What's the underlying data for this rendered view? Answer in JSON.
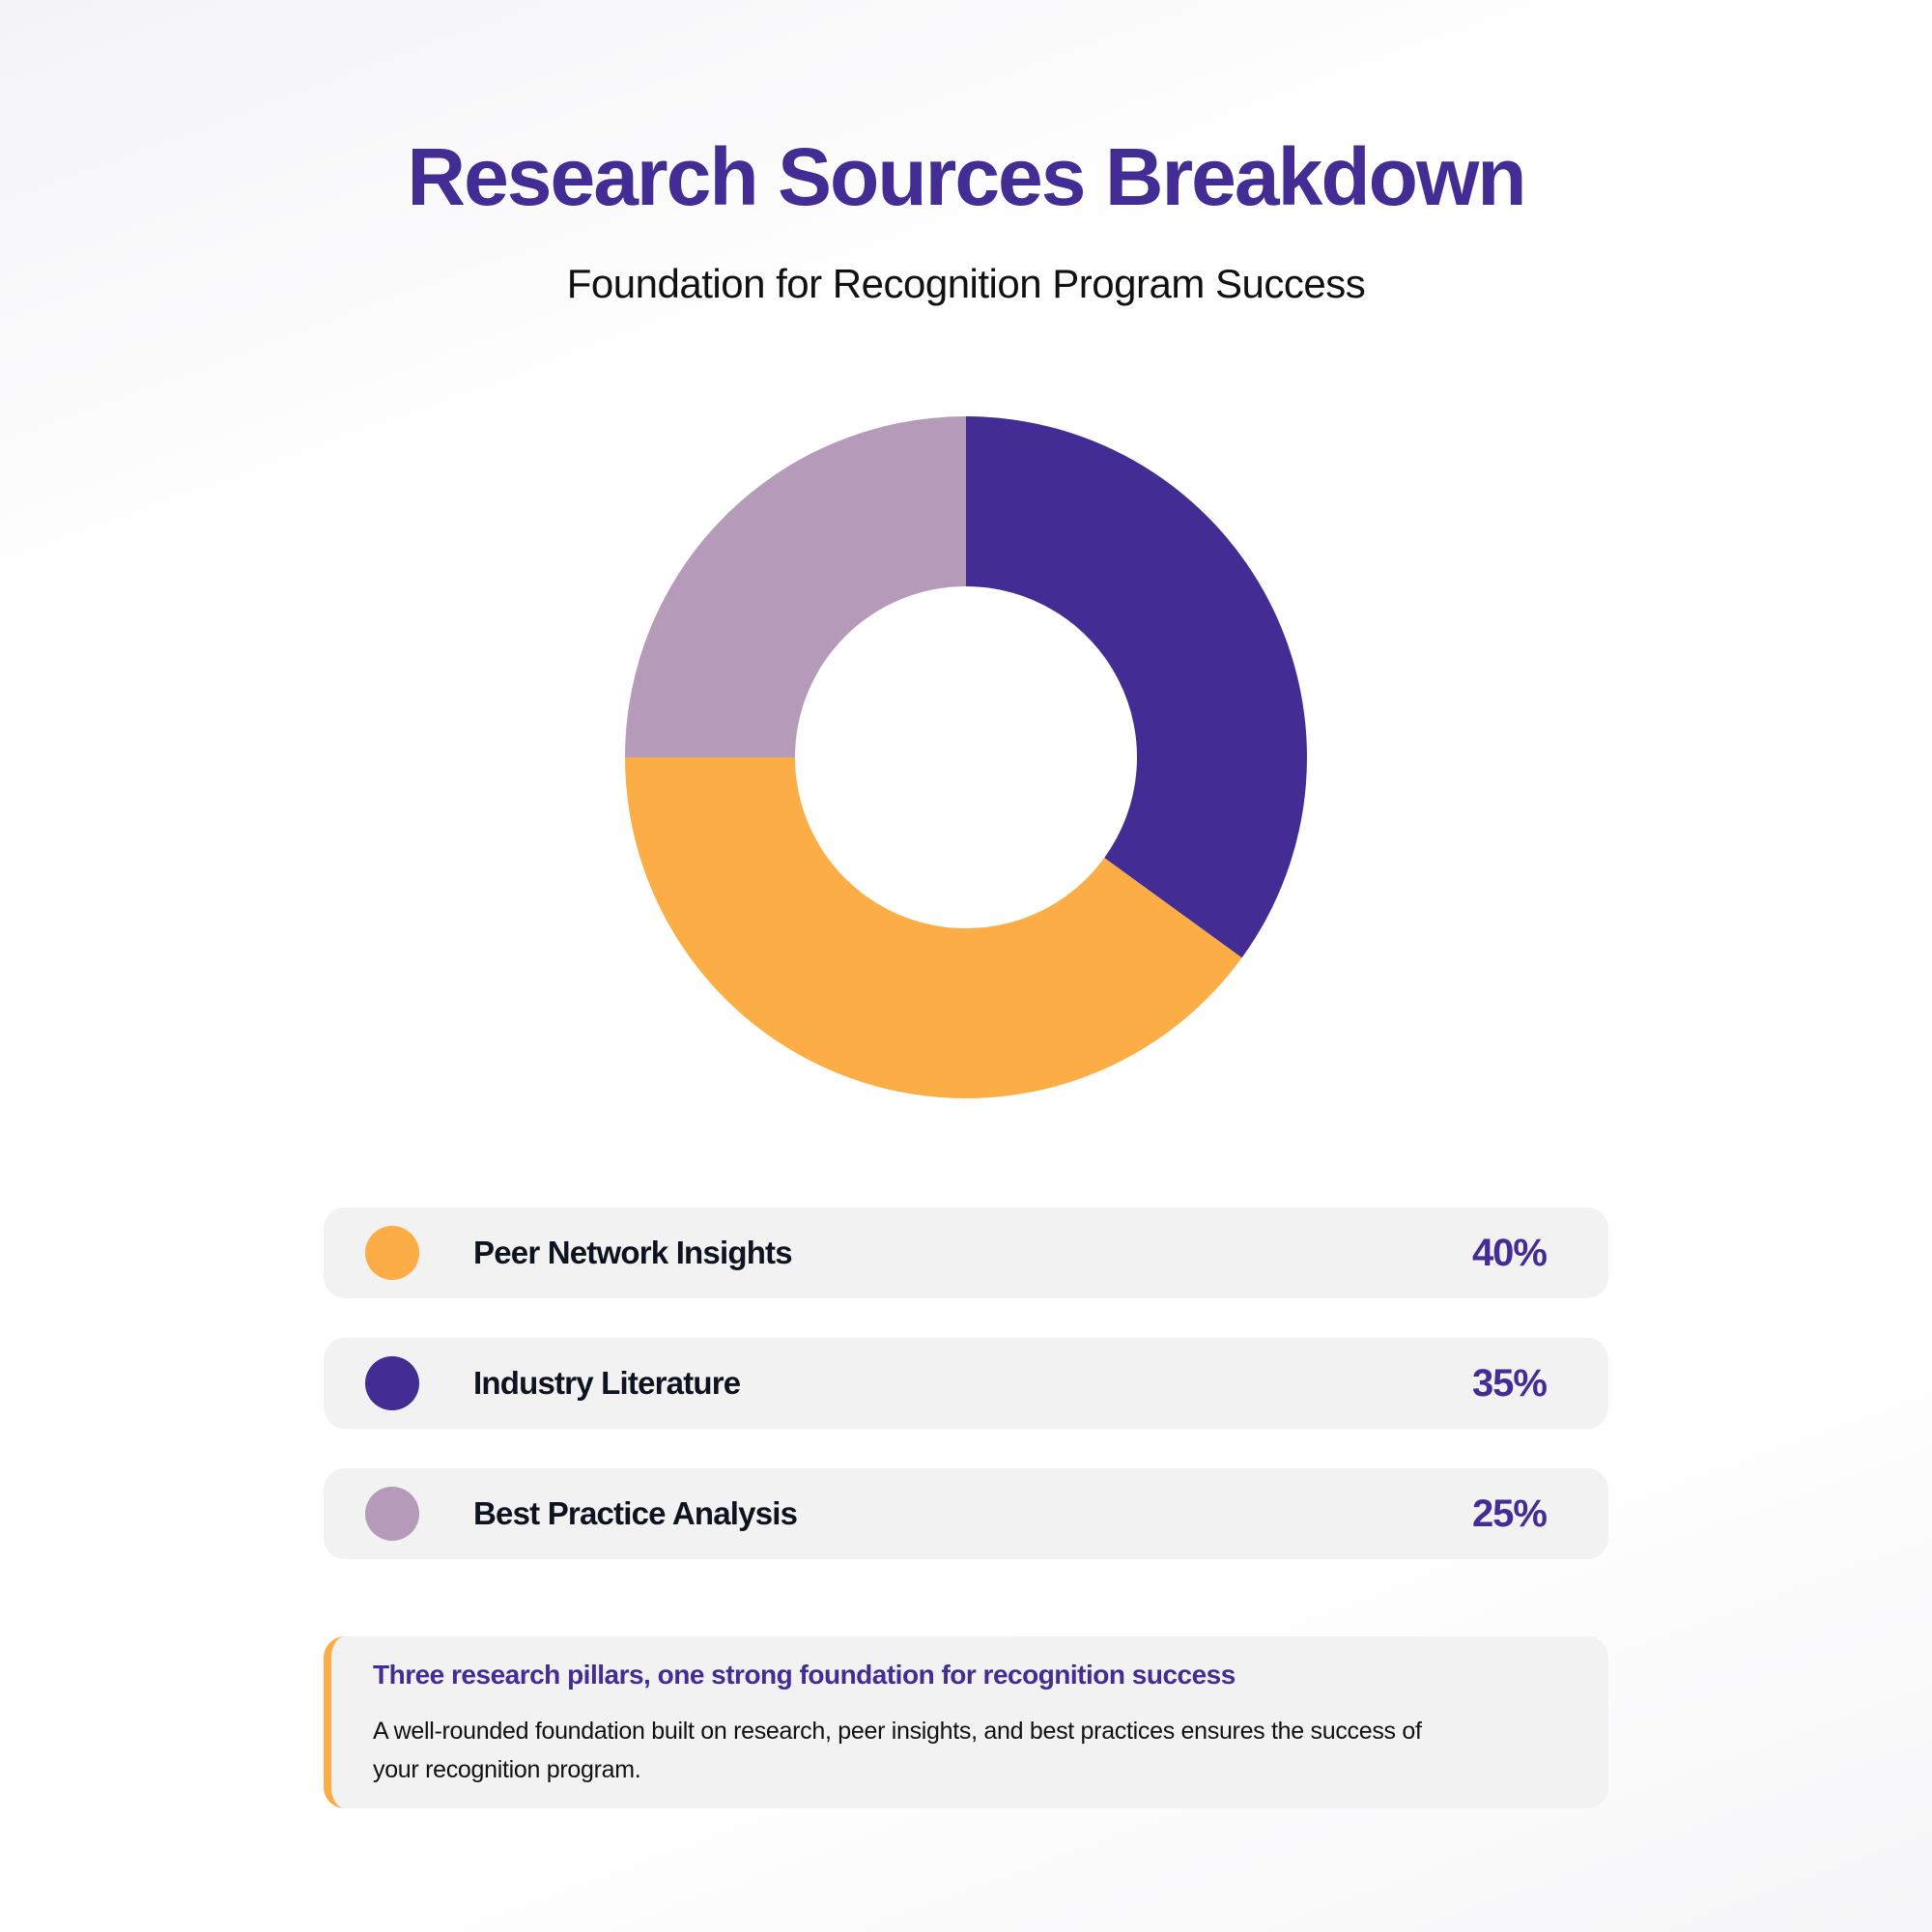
{
  "header": {
    "title": "Research Sources Breakdown",
    "subtitle": "Foundation for Recognition Program Success"
  },
  "chart_data": {
    "type": "pie",
    "variant": "donut",
    "title": "Research Sources Breakdown",
    "categories": [
      "Peer Network Insights",
      "Industry Literature",
      "Best Practice Analysis"
    ],
    "values": [
      40,
      35,
      25
    ],
    "colors": [
      "#FCAD45",
      "#432C93",
      "#B59AB9"
    ],
    "unit": "%"
  },
  "legend": [
    {
      "label": "Peer Network Insights",
      "value": "40%"
    },
    {
      "label": "Industry Literature",
      "value": "35%"
    },
    {
      "label": "Best Practice Analysis",
      "value": "25%"
    }
  ],
  "callout": {
    "heading": "Three research pillars, one strong foundation for recognition success",
    "body": "A well-rounded foundation built on research, peer insights, and best practices ensures the success of your recognition program."
  }
}
